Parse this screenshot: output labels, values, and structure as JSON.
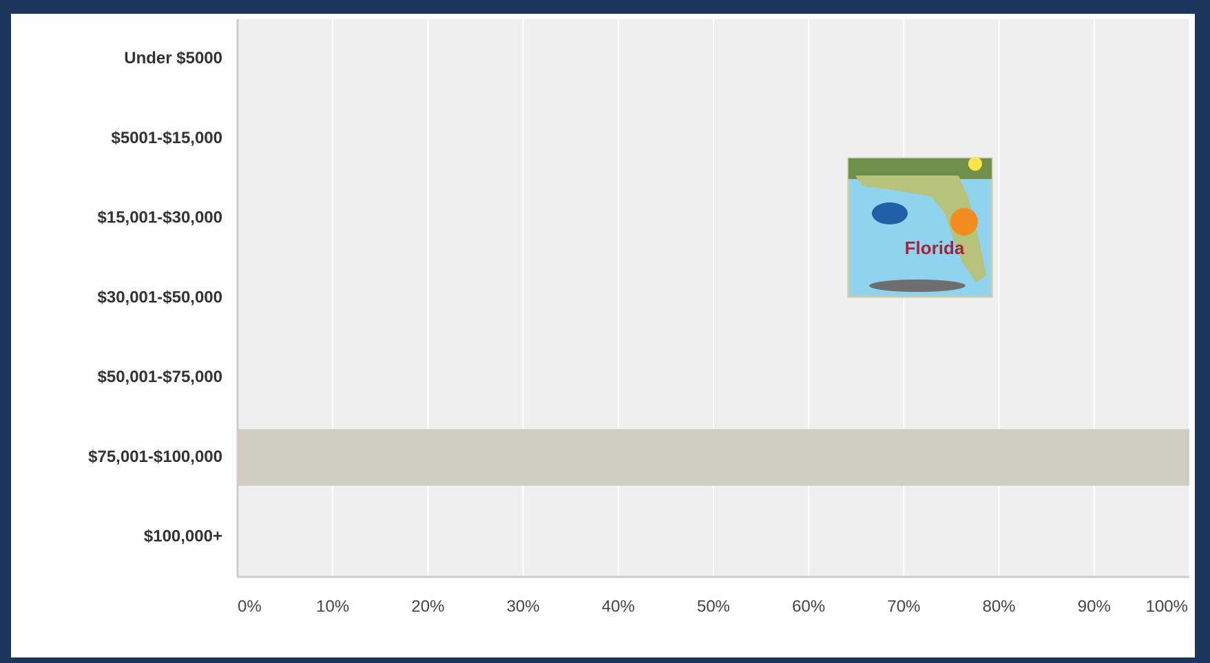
{
  "chart_data": {
    "type": "hbar",
    "categories": [
      "Under $5000",
      "$5001-$15,000",
      "$15,001-$30,000",
      "$30,001-$50,000",
      "$50,001-$75,000",
      "$75,001-$100,000",
      "$100,000+"
    ],
    "values": [
      0,
      0,
      0,
      0,
      0,
      100,
      0
    ],
    "color": "#cfcdc0",
    "xlim": [
      0,
      100
    ],
    "xticks": [
      {
        "value": 0,
        "label": "0%"
      },
      {
        "value": 10,
        "label": "10%"
      },
      {
        "value": 20,
        "label": "20%"
      },
      {
        "value": 30,
        "label": "30%"
      },
      {
        "value": 40,
        "label": "40%"
      },
      {
        "value": 50,
        "label": "50%"
      },
      {
        "value": 60,
        "label": "60%"
      },
      {
        "value": 70,
        "label": "70%"
      },
      {
        "value": 80,
        "label": "80%"
      },
      {
        "value": 90,
        "label": "90%"
      },
      {
        "value": 100,
        "label": "100%"
      }
    ],
    "grid": true,
    "annotations": [
      {
        "text": "Florida"
      }
    ]
  }
}
